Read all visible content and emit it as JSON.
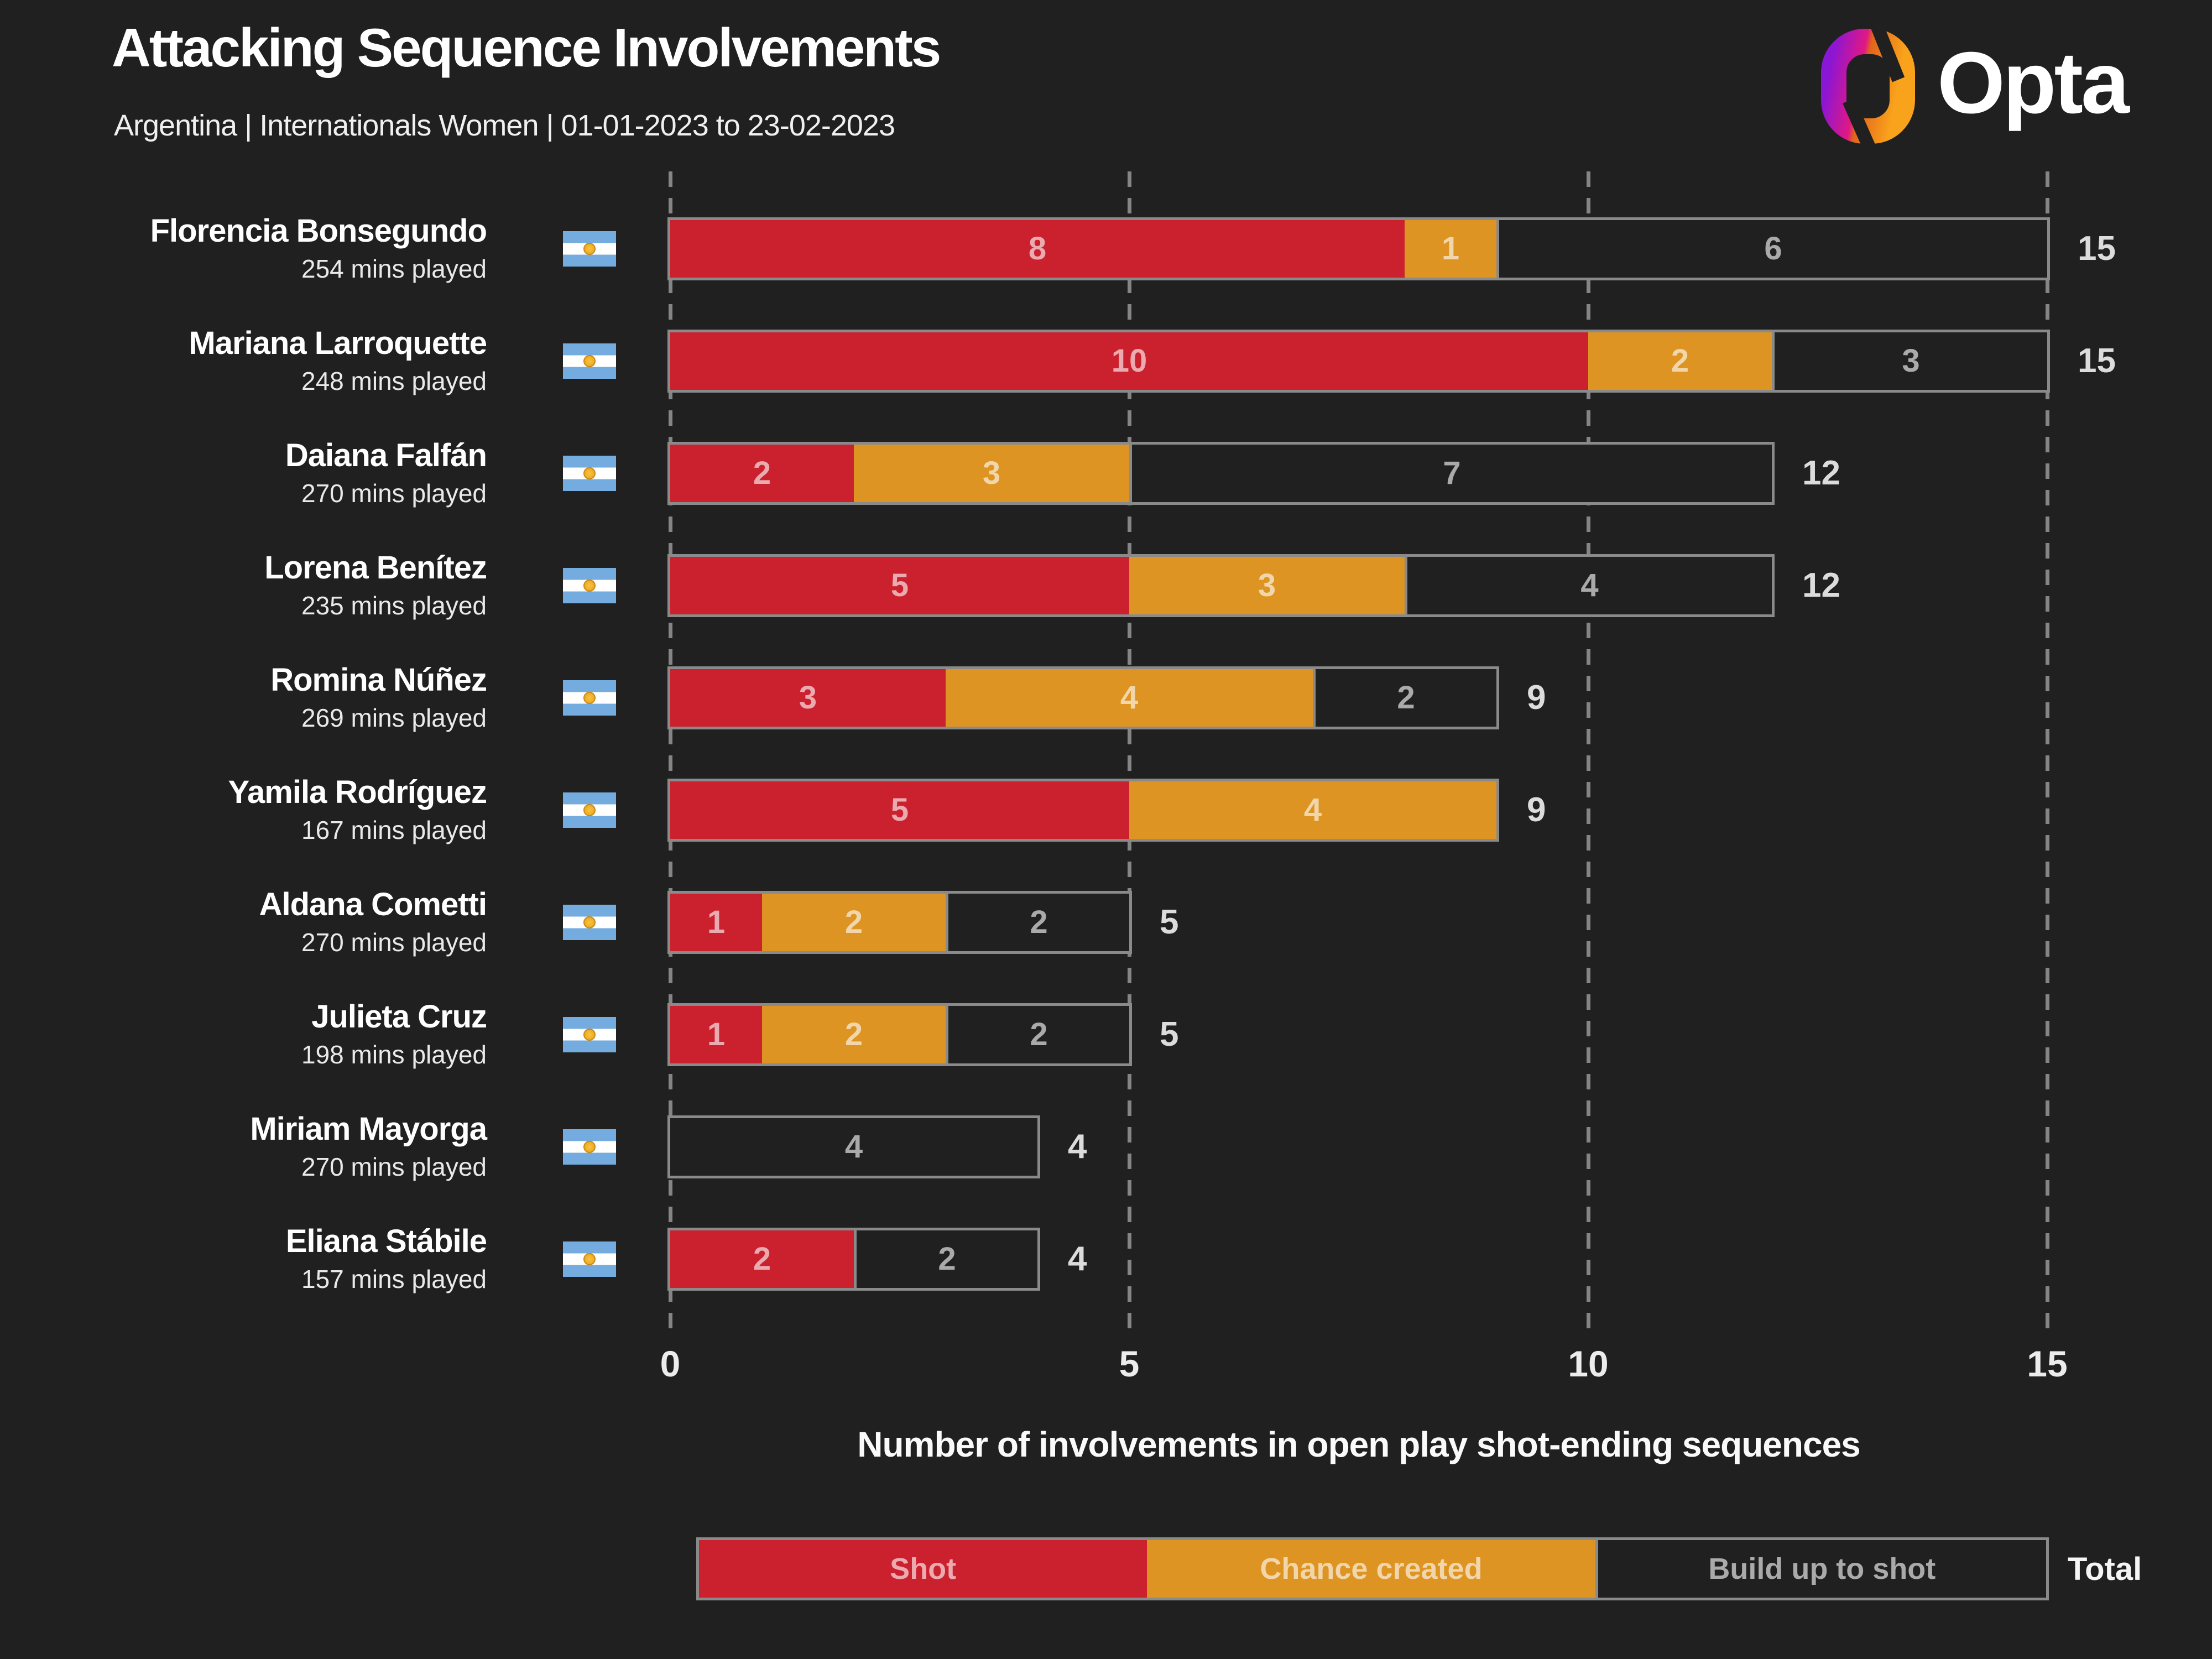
{
  "header": {
    "title": "Attacking Sequence Involvements",
    "subtitle": "Argentina | Internationals Women | 01-01-2023 to 23-02-2023",
    "brand": "Opta"
  },
  "colors": {
    "background": "#212021",
    "shot_red": "#CB212E",
    "chance_orange": "#DD9422",
    "bar_outline_gray": "#8A8A8A",
    "flag_blue": "#74ACDF",
    "flag_sun_gold": "#F6B40E",
    "logo_gradient": [
      "#8A16D6",
      "#E01884",
      "#F9A21B"
    ]
  },
  "axis": {
    "label": "Number of involvements in open play shot-ending sequences",
    "ticks": [
      "0",
      "5",
      "10",
      "15"
    ]
  },
  "legend": {
    "items": [
      {
        "label": "Shot",
        "color": "#CB212E"
      },
      {
        "label": "Chance created",
        "color": "#DD9422"
      },
      {
        "label": "Build up to shot",
        "color": "outlined-dark"
      }
    ],
    "total_label": "Total"
  },
  "chart_data": {
    "type": "bar",
    "stacked": true,
    "orientation": "horizontal",
    "xlim": [
      0,
      15
    ],
    "x_ticks": [
      0,
      5,
      10,
      15
    ],
    "xlabel": "Number of involvements in open play shot-ending sequences",
    "series": [
      {
        "name": "Shot",
        "values": [
          8,
          10,
          2,
          5,
          3,
          5,
          1,
          1,
          0,
          2
        ]
      },
      {
        "name": "Chance created",
        "values": [
          1,
          2,
          3,
          3,
          4,
          4,
          2,
          2,
          0,
          0
        ]
      },
      {
        "name": "Build up to shot",
        "values": [
          6,
          3,
          7,
          4,
          2,
          0,
          2,
          2,
          4,
          2
        ]
      }
    ],
    "players": [
      {
        "name": "Florencia Bonsegundo",
        "mins": "254 mins played",
        "shot": 8,
        "chance": 1,
        "build": 6,
        "total": 15
      },
      {
        "name": "Mariana Larroquette",
        "mins": "248 mins played",
        "shot": 10,
        "chance": 2,
        "build": 3,
        "total": 15
      },
      {
        "name": "Daiana Falfán",
        "mins": "270 mins played",
        "shot": 2,
        "chance": 3,
        "build": 7,
        "total": 12
      },
      {
        "name": "Lorena Benítez",
        "mins": "235 mins played",
        "shot": 5,
        "chance": 3,
        "build": 4,
        "total": 12
      },
      {
        "name": "Romina Núñez",
        "mins": "269 mins played",
        "shot": 3,
        "chance": 4,
        "build": 2,
        "total": 9
      },
      {
        "name": "Yamila Rodríguez",
        "mins": "167 mins played",
        "shot": 5,
        "chance": 4,
        "build": 0,
        "total": 9
      },
      {
        "name": "Aldana Cometti",
        "mins": "270 mins played",
        "shot": 1,
        "chance": 2,
        "build": 2,
        "total": 5
      },
      {
        "name": "Julieta Cruz",
        "mins": "198 mins played",
        "shot": 1,
        "chance": 2,
        "build": 2,
        "total": 5
      },
      {
        "name": "Miriam Mayorga",
        "mins": "270 mins played",
        "shot": 0,
        "chance": 0,
        "build": 4,
        "total": 4
      },
      {
        "name": "Eliana Stábile",
        "mins": "157 mins played",
        "shot": 2,
        "chance": 0,
        "build": 2,
        "total": 4
      }
    ]
  }
}
